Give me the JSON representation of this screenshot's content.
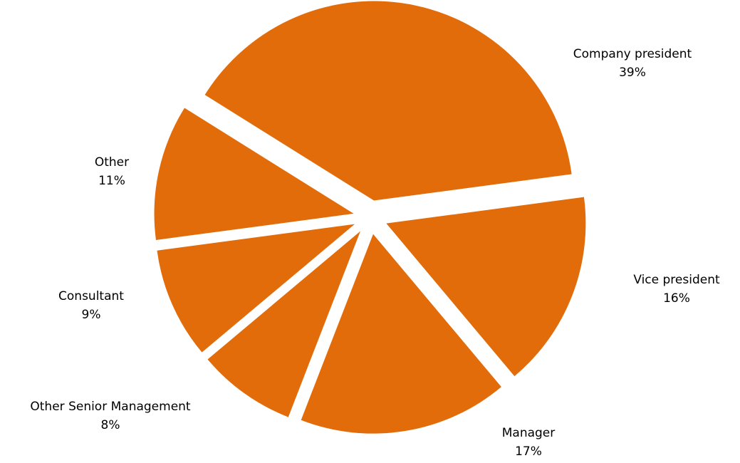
{
  "chart_data": {
    "type": "pie",
    "categories": [
      "Company president",
      "Vice president",
      "Manager",
      "Other Senior Management",
      "Consultant",
      "Other"
    ],
    "values": [
      39,
      16,
      17,
      8,
      9,
      11
    ],
    "value_labels": [
      "39%",
      "16%",
      "17%",
      "8%",
      "9%",
      "11%"
    ],
    "color": "#e36c0a"
  }
}
